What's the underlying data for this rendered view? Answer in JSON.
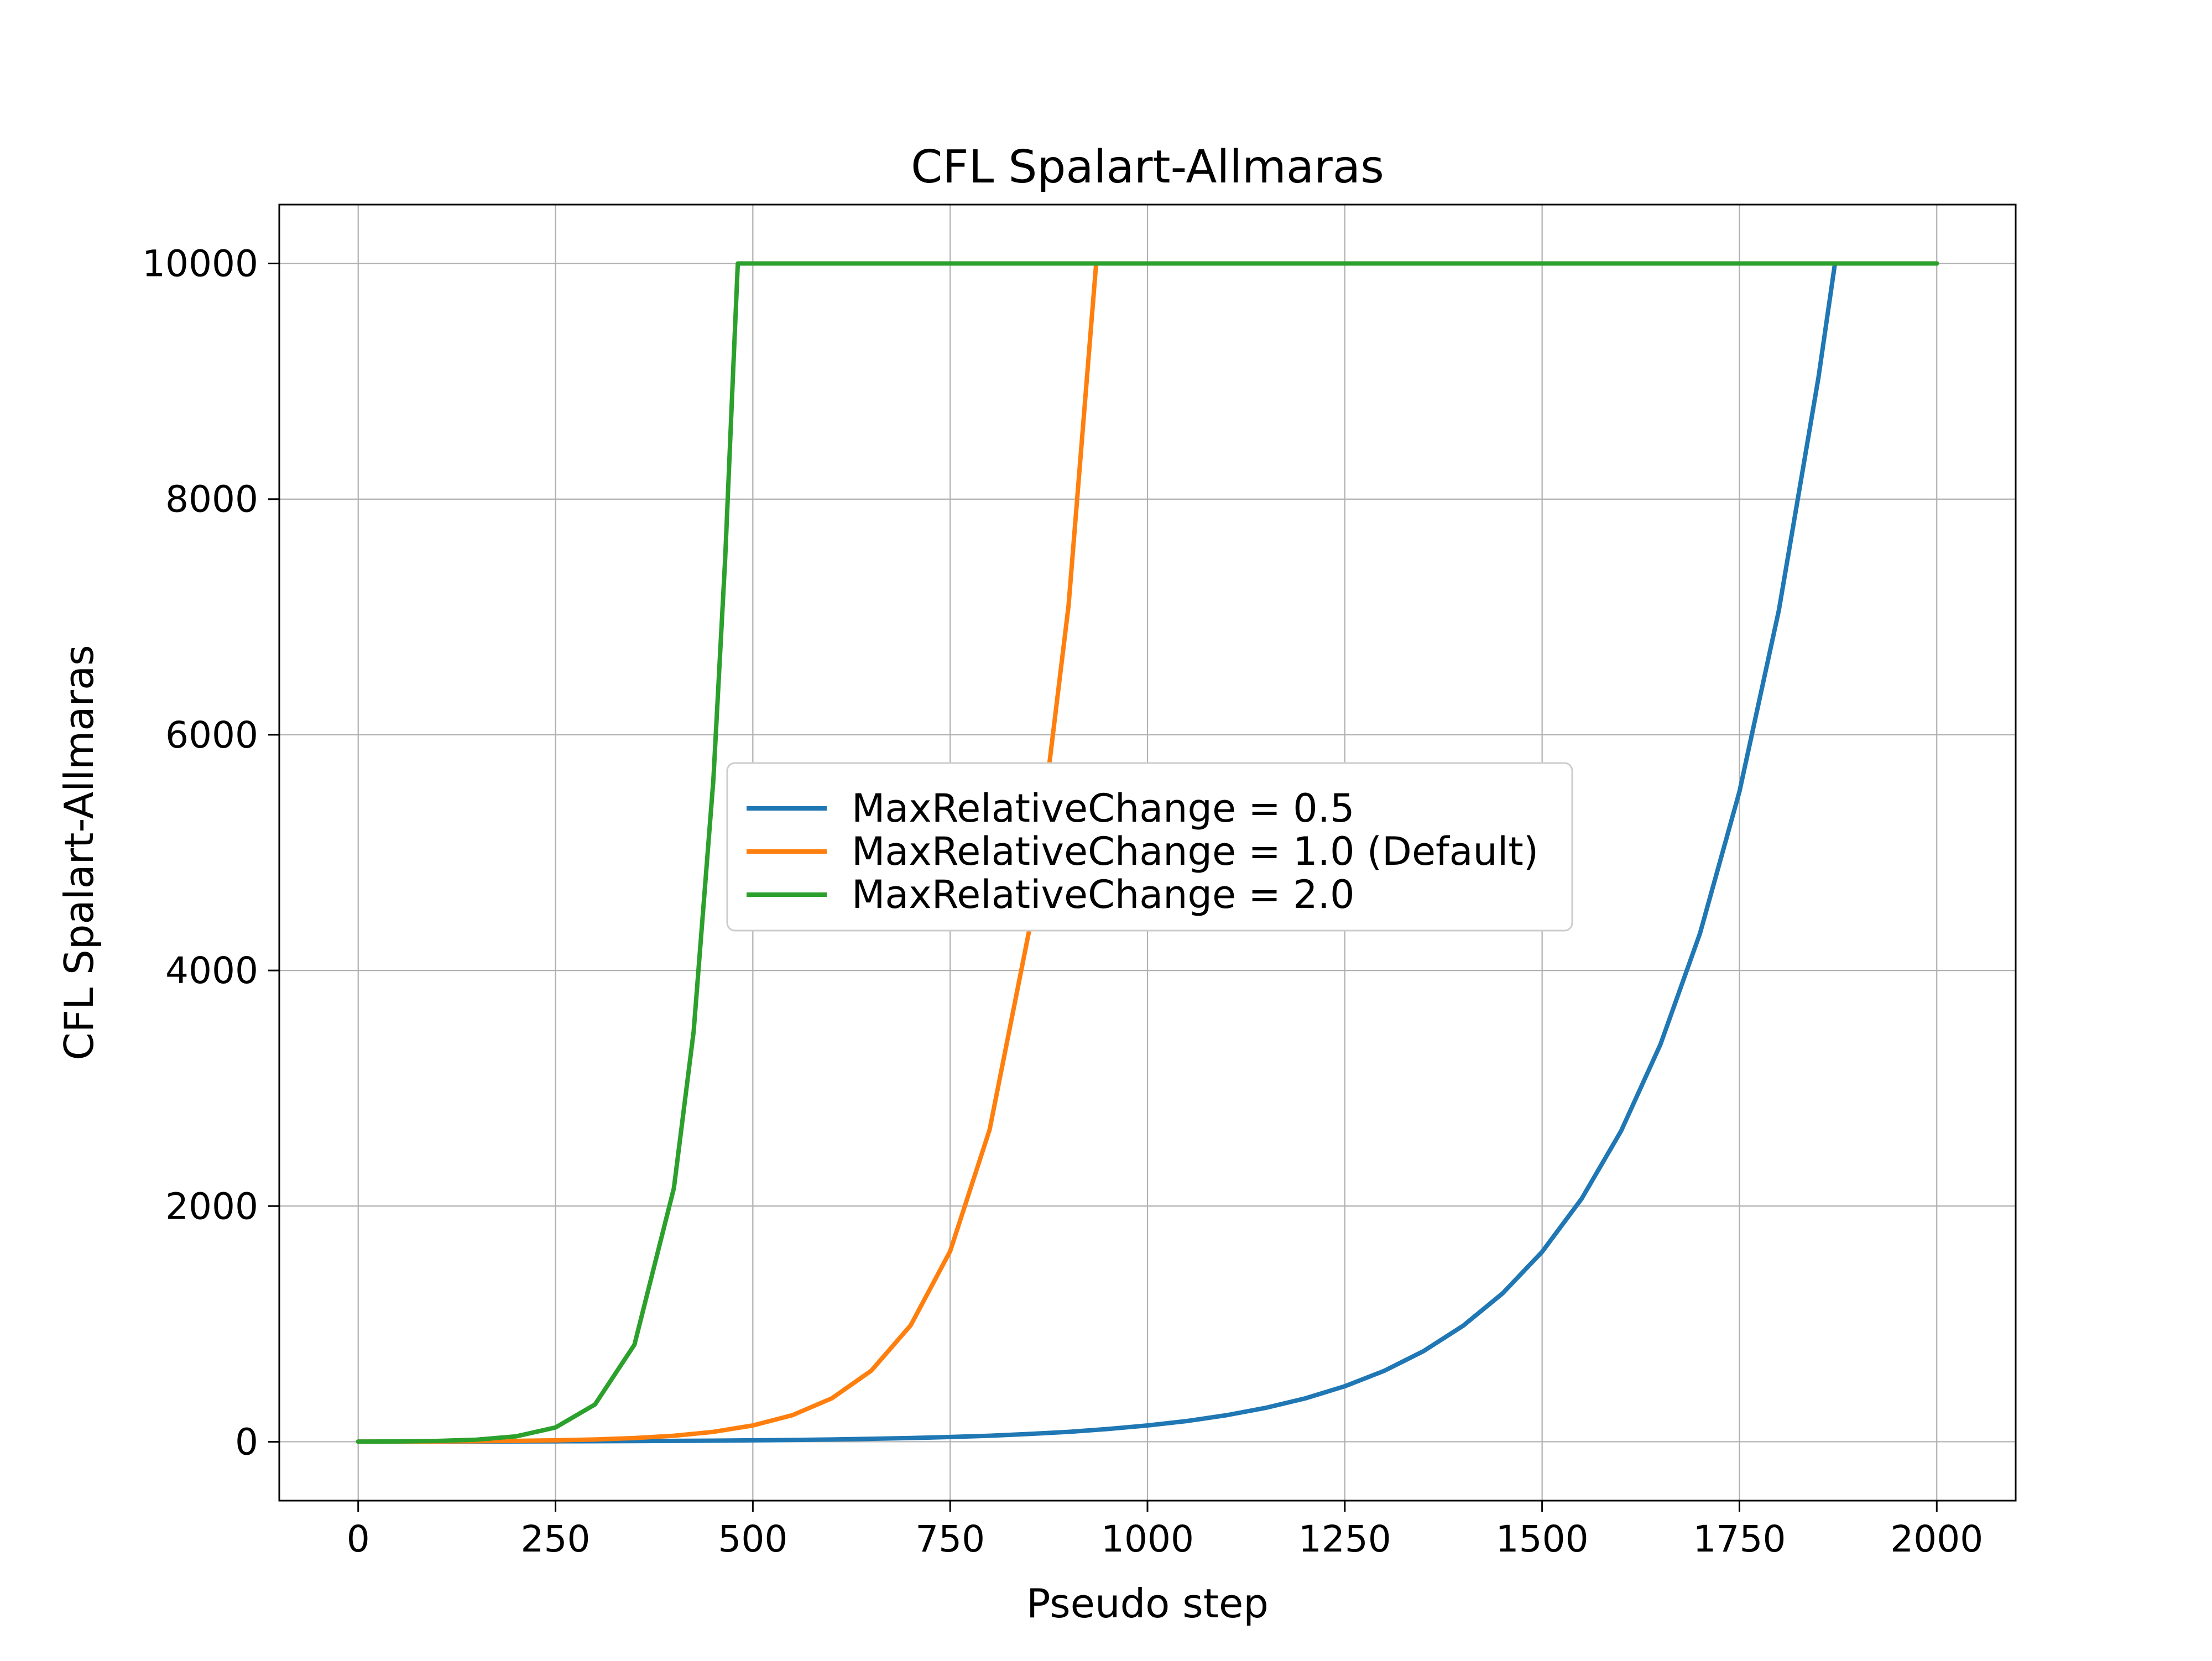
{
  "figure": {
    "background_color": "#ffffff",
    "grid_color": "#b0b0b0",
    "spine_color": "#000000",
    "legend_border_color": "#cccccc",
    "legend_background_color": "#ffffff"
  },
  "chart_data": {
    "type": "line",
    "title": "CFL Spalart-Allmaras",
    "xlabel": "Pseudo step",
    "ylabel": "CFL Spalart-Allmaras",
    "xlim": [
      -100,
      2100
    ],
    "ylim": [
      -500,
      10500
    ],
    "xticks": [
      0,
      250,
      500,
      750,
      1000,
      1250,
      1500,
      1750,
      2000
    ],
    "yticks": [
      0,
      2000,
      4000,
      6000,
      8000,
      10000
    ],
    "grid": true,
    "legend_position": "inside-center-left",
    "series": [
      {
        "name": "MaxRelativeChange = 0.5",
        "color": "#1f77b4",
        "points": [
          [
            0,
            1
          ],
          [
            50,
            1.3
          ],
          [
            100,
            1.6
          ],
          [
            150,
            2.1
          ],
          [
            200,
            2.7
          ],
          [
            250,
            3.4
          ],
          [
            300,
            4.4
          ],
          [
            350,
            5.6
          ],
          [
            400,
            7.2
          ],
          [
            450,
            9.2
          ],
          [
            500,
            12
          ],
          [
            550,
            15
          ],
          [
            600,
            19
          ],
          [
            650,
            25
          ],
          [
            700,
            31
          ],
          [
            750,
            40
          ],
          [
            800,
            51
          ],
          [
            850,
            66
          ],
          [
            900,
            84
          ],
          [
            950,
            108
          ],
          [
            1000,
            138
          ],
          [
            1050,
            176
          ],
          [
            1100,
            225
          ],
          [
            1150,
            288
          ],
          [
            1200,
            368
          ],
          [
            1250,
            471
          ],
          [
            1300,
            602
          ],
          [
            1350,
            770
          ],
          [
            1400,
            985
          ],
          [
            1450,
            1260
          ],
          [
            1500,
            1612
          ],
          [
            1550,
            2062
          ],
          [
            1600,
            2637
          ],
          [
            1650,
            3373
          ],
          [
            1700,
            4314
          ],
          [
            1750,
            5518
          ],
          [
            1800,
            7058
          ],
          [
            1850,
            9028
          ],
          [
            1871,
            10000
          ],
          [
            2000,
            10000
          ]
        ]
      },
      {
        "name": "MaxRelativeChange = 1.0 (Default)",
        "color": "#ff7f0e",
        "points": [
          [
            0,
            1
          ],
          [
            50,
            1.6
          ],
          [
            100,
            2.7
          ],
          [
            150,
            4.4
          ],
          [
            200,
            7.2
          ],
          [
            250,
            12
          ],
          [
            300,
            19
          ],
          [
            350,
            31
          ],
          [
            400,
            51
          ],
          [
            450,
            84
          ],
          [
            500,
            138
          ],
          [
            550,
            225
          ],
          [
            600,
            368
          ],
          [
            650,
            603
          ],
          [
            700,
            988
          ],
          [
            750,
            1617
          ],
          [
            800,
            2648
          ],
          [
            850,
            4335
          ],
          [
            900,
            7097
          ],
          [
            935,
            10000
          ],
          [
            2000,
            10000
          ]
        ]
      },
      {
        "name": "MaxRelativeChange = 2.0",
        "color": "#2ca02c",
        "points": [
          [
            0,
            1
          ],
          [
            50,
            2.6
          ],
          [
            100,
            6.8
          ],
          [
            150,
            17.8
          ],
          [
            200,
            46
          ],
          [
            250,
            121
          ],
          [
            300,
            316
          ],
          [
            350,
            824
          ],
          [
            400,
            2152
          ],
          [
            425,
            3480
          ],
          [
            450,
            5617
          ],
          [
            465,
            7500
          ],
          [
            475,
            9080
          ],
          [
            481,
            10000
          ],
          [
            2000,
            10000
          ]
        ]
      }
    ]
  }
}
